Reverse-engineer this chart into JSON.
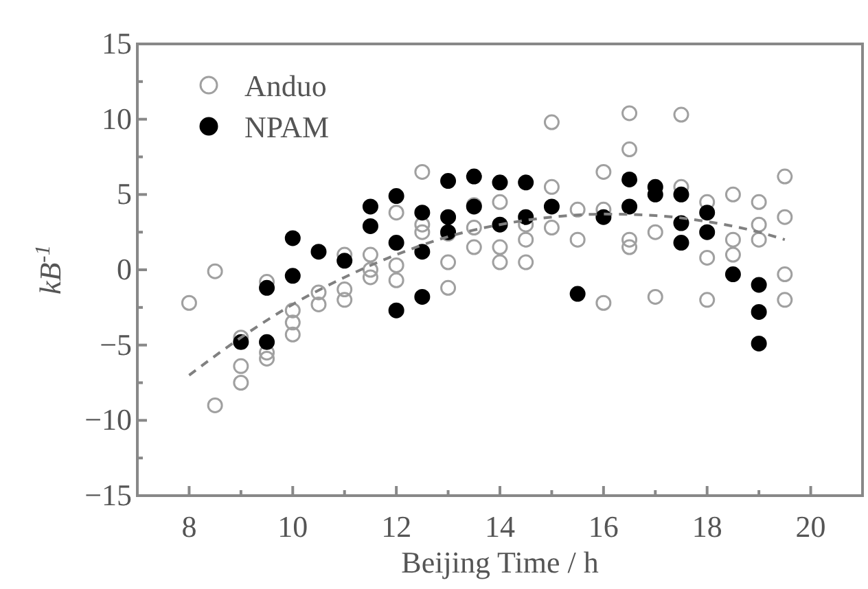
{
  "chart_data": {
    "type": "scatter",
    "xlabel": "Beijing Time / h",
    "ylabel": "kB$^{-1}$",
    "xlim": [
      7,
      21
    ],
    "xticks": [
      8,
      {
        "value": 9,
        "label": null
      },
      10,
      {
        "value": 11,
        "label": null
      },
      12,
      {
        "value": 13,
        "label": null
      },
      14,
      {
        "value": 15,
        "label": null
      },
      16,
      {
        "value": 17,
        "label": null
      },
      18,
      {
        "value": 19,
        "label": null
      },
      20
    ],
    "ylim": [
      -15,
      15
    ],
    "yticks": [
      -15,
      {
        "value": -12.5,
        "label": null
      },
      -10,
      {
        "value": -7.5,
        "label": null
      },
      -5,
      {
        "value": -2.5,
        "label": null
      },
      0,
      {
        "value": 2.5,
        "label": null
      },
      5,
      {
        "value": 7.5,
        "label": null
      },
      10,
      {
        "value": 12.5,
        "label": null
      },
      15
    ],
    "legend": "top left",
    "grid": false,
    "series": [
      {
        "name": "Anduo",
        "color": "#a0a0a0",
        "marker": "circle",
        "x": [
          8,
          8.5,
          8.5,
          9,
          9,
          9,
          9.5,
          9.5,
          9.5,
          10,
          10,
          10,
          10.5,
          10.5,
          11,
          11,
          11,
          11.5,
          11.5,
          11.5,
          12,
          12,
          12,
          12.5,
          12.5,
          12.5,
          13,
          13,
          13,
          13.5,
          13.5,
          13.5,
          14,
          14,
          14,
          14.5,
          14.5,
          14.5,
          15,
          15,
          15,
          15.5,
          15.5,
          16,
          16,
          16,
          16.5,
          16.5,
          16.5,
          16.5,
          17,
          17,
          17.5,
          17.5,
          18,
          18,
          18,
          18.5,
          18.5,
          18.5,
          19,
          19,
          19,
          19.5,
          19.5,
          19.5,
          19.5
        ],
        "values": [
          -2.2,
          -0.1,
          -9,
          -6.4,
          -7.5,
          -4.5,
          -5.5,
          -5.9,
          -0.8,
          -4.3,
          -3.5,
          -2.7,
          -2.3,
          -1.5,
          -2,
          -1.3,
          1,
          0,
          -0.5,
          1,
          3.8,
          -0.7,
          0.3,
          6.5,
          2.5,
          3,
          -1.2,
          0.5,
          2.4,
          1.5,
          2.8,
          4.3,
          0.5,
          1.5,
          4.5,
          0.5,
          2,
          3,
          9.8,
          5.5,
          2.8,
          2,
          4,
          -2.2,
          6.5,
          4,
          10.4,
          8,
          2,
          1.5,
          -1.8,
          2.5,
          10.3,
          5.5,
          -2,
          0.8,
          4.5,
          1,
          2,
          5,
          4.5,
          3,
          2,
          6.2,
          3.5,
          -0.3,
          -2
        ]
      },
      {
        "name": "NPAM",
        "color": "#000000",
        "marker": "circle",
        "x": [
          9,
          9.5,
          9.5,
          10,
          10,
          10.5,
          11,
          11.5,
          11.5,
          12,
          12,
          12,
          12.5,
          12.5,
          12.5,
          13,
          13,
          13,
          13.5,
          13.5,
          14,
          14,
          14.5,
          14.5,
          15,
          15.5,
          16,
          16.5,
          16.5,
          17,
          17,
          17.5,
          17.5,
          17.5,
          18,
          18,
          18.5,
          19,
          19,
          19
        ],
        "values": [
          -4.8,
          -1.2,
          -4.8,
          2.1,
          -0.4,
          1.2,
          0.6,
          4.2,
          2.9,
          4.9,
          1.8,
          -2.7,
          3.8,
          1.2,
          -1.8,
          5.9,
          3.5,
          2.5,
          6.2,
          4.2,
          5.8,
          3,
          5.8,
          3.5,
          4.2,
          -1.6,
          3.5,
          6,
          4.2,
          5.5,
          5,
          5,
          3.1,
          1.8,
          3.8,
          2.5,
          -0.3,
          -1,
          -2.8,
          -4.9
        ]
      },
      {
        "type": "line",
        "color": "#808080",
        "line_style": "dashed",
        "x": [
          8,
          9,
          10,
          11,
          12,
          13,
          14,
          15,
          16,
          17,
          18,
          19,
          19.5
        ],
        "values": [
          -7,
          -4.5,
          -2.3,
          -0.5,
          1,
          2.2,
          3,
          3.5,
          3.7,
          3.6,
          3.2,
          2.5,
          2
        ]
      }
    ]
  }
}
